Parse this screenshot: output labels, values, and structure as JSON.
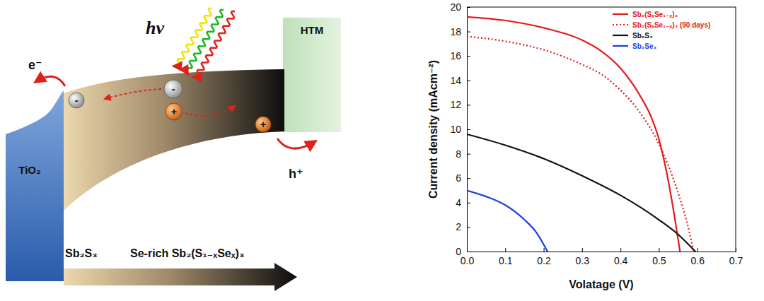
{
  "diagram": {
    "tio2_label": "TiO₂",
    "htm_label": "HTM",
    "electron_label": "e⁻",
    "hole_label": "h⁺",
    "light_label": "hν",
    "electron_sign": "-",
    "hole_sign": "+",
    "gradient_start_label": "Sb₂S₃",
    "gradient_end_label": "Se-rich Sb₂(S₁₋ₓSeₓ)₃"
  },
  "chart_data": {
    "type": "line",
    "x_label": "Volatage (V)",
    "y_label": "Current density (mAcm⁻²)",
    "xlim": [
      0,
      0.7
    ],
    "ylim": [
      0,
      20
    ],
    "xticks": [
      {
        "value": 0,
        "label": "0.0"
      },
      0.1,
      0.2,
      0.3,
      0.4,
      0.5,
      0.6,
      0.7
    ],
    "yticks": [
      0,
      2,
      4,
      6,
      8,
      10,
      12,
      14,
      16,
      18,
      20
    ],
    "legend": "top-right",
    "series": [
      {
        "name": "Sb₂(SₓSe₁₋ₓ)₃",
        "color": "#e8191c",
        "line_style": "solid",
        "x": [
          0,
          0.1,
          0.2,
          0.3,
          0.35,
          0.4,
          0.45,
          0.48,
          0.5,
          0.52,
          0.54,
          0.555
        ],
        "values": [
          19.2,
          18.9,
          18.3,
          17.3,
          16.4,
          15.0,
          12.8,
          11.0,
          9.2,
          6.5,
          3.0,
          0
        ]
      },
      {
        "name": "Sb₂(SₓSe₁₋ₓ)₃ (90 days)",
        "color": "#e8191c",
        "line_style": "dotted",
        "x": [
          0,
          0.1,
          0.2,
          0.3,
          0.35,
          0.4,
          0.45,
          0.5,
          0.55,
          0.58,
          0.59
        ],
        "values": [
          17.6,
          17.2,
          16.5,
          15.3,
          14.5,
          13.2,
          11.4,
          8.8,
          4.8,
          1.5,
          0
        ]
      },
      {
        "name": "Sb₂S₃",
        "color": "#111111",
        "line_style": "solid",
        "x": [
          0,
          0.1,
          0.2,
          0.3,
          0.4,
          0.5,
          0.55,
          0.595
        ],
        "values": [
          9.6,
          8.7,
          7.6,
          6.2,
          4.6,
          2.6,
          1.4,
          0
        ]
      },
      {
        "name": "Sb₂Se₃",
        "color": "#1f3fe0",
        "line_style": "solid",
        "x": [
          0,
          0.05,
          0.1,
          0.15,
          0.18,
          0.21
        ],
        "values": [
          5.0,
          4.5,
          3.8,
          2.6,
          1.6,
          0
        ]
      }
    ]
  }
}
